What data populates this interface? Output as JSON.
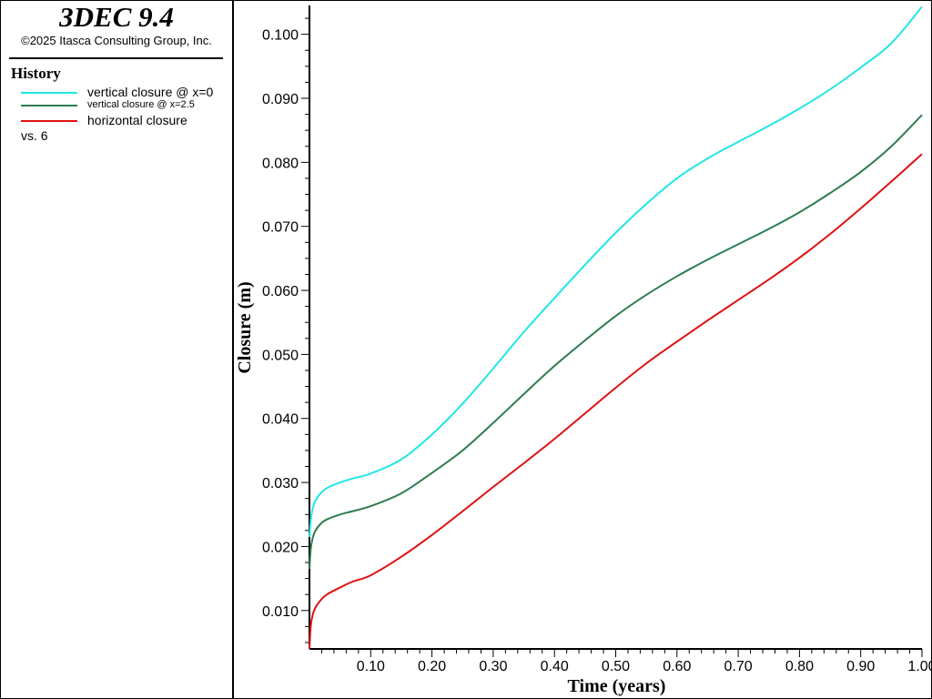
{
  "app": {
    "title": "3DEC 9.4",
    "copyright": "©2025 Itasca Consulting Group, Inc."
  },
  "legend": {
    "heading": "History",
    "vs": "vs. 6",
    "items": [
      {
        "label": "vertical closure @ x=0",
        "color": "#22E6E6"
      },
      {
        "label": "vertical closure @ x=2.5",
        "color": "#2E7D4F"
      },
      {
        "label": "horizontal closure",
        "color": "#E01010"
      }
    ]
  },
  "chart_data": {
    "type": "line",
    "xlabel": "Time (years)",
    "ylabel": "Closure (m)",
    "xlim": [
      0,
      1.0
    ],
    "ylim": [
      0.004,
      0.1045
    ],
    "x_ticks": [
      "0.10",
      "0.20",
      "0.30",
      "0.40",
      "0.50",
      "0.60",
      "0.70",
      "0.80",
      "0.90",
      "1.00"
    ],
    "y_ticks": [
      "0.010",
      "0.020",
      "0.030",
      "0.040",
      "0.050",
      "0.060",
      "0.070",
      "0.080",
      "0.090",
      "0.100"
    ],
    "grid": false,
    "legend_position": "left-panel",
    "series": [
      {
        "name": "vertical closure @ x=0",
        "color": "#22E6E6",
        "points": [
          [
            0,
            0.0215
          ],
          [
            0.002,
            0.024
          ],
          [
            0.005,
            0.0258
          ],
          [
            0.01,
            0.0272
          ],
          [
            0.02,
            0.0285
          ],
          [
            0.03,
            0.0292
          ],
          [
            0.05,
            0.03
          ],
          [
            0.07,
            0.0306
          ],
          [
            0.1,
            0.0314
          ],
          [
            0.15,
            0.0336
          ],
          [
            0.2,
            0.0375
          ],
          [
            0.25,
            0.0423
          ],
          [
            0.3,
            0.0478
          ],
          [
            0.35,
            0.0535
          ],
          [
            0.4,
            0.0588
          ],
          [
            0.45,
            0.064
          ],
          [
            0.5,
            0.069
          ],
          [
            0.55,
            0.0735
          ],
          [
            0.6,
            0.0775
          ],
          [
            0.65,
            0.0806
          ],
          [
            0.7,
            0.0832
          ],
          [
            0.75,
            0.0857
          ],
          [
            0.8,
            0.0884
          ],
          [
            0.85,
            0.0914
          ],
          [
            0.9,
            0.0948
          ],
          [
            0.95,
            0.0986
          ],
          [
            1.0,
            0.1043
          ]
        ]
      },
      {
        "name": "vertical closure @ x=2.5",
        "color": "#2E7D4F",
        "points": [
          [
            0,
            0.0165
          ],
          [
            0.002,
            0.0195
          ],
          [
            0.005,
            0.0212
          ],
          [
            0.01,
            0.0225
          ],
          [
            0.02,
            0.0237
          ],
          [
            0.03,
            0.0243
          ],
          [
            0.05,
            0.025
          ],
          [
            0.07,
            0.0255
          ],
          [
            0.1,
            0.0263
          ],
          [
            0.15,
            0.0283
          ],
          [
            0.2,
            0.0315
          ],
          [
            0.25,
            0.035
          ],
          [
            0.3,
            0.0393
          ],
          [
            0.35,
            0.0438
          ],
          [
            0.4,
            0.0482
          ],
          [
            0.45,
            0.0522
          ],
          [
            0.5,
            0.056
          ],
          [
            0.55,
            0.0593
          ],
          [
            0.6,
            0.0622
          ],
          [
            0.65,
            0.0648
          ],
          [
            0.7,
            0.0672
          ],
          [
            0.75,
            0.0696
          ],
          [
            0.8,
            0.0722
          ],
          [
            0.85,
            0.0752
          ],
          [
            0.9,
            0.0785
          ],
          [
            0.95,
            0.0825
          ],
          [
            1.0,
            0.0874
          ]
        ]
      },
      {
        "name": "horizontal closure",
        "color": "#E01010",
        "points": [
          [
            0,
            0.004
          ],
          [
            0.002,
            0.0075
          ],
          [
            0.005,
            0.0092
          ],
          [
            0.01,
            0.0105
          ],
          [
            0.02,
            0.0118
          ],
          [
            0.03,
            0.0126
          ],
          [
            0.05,
            0.0136
          ],
          [
            0.07,
            0.0145
          ],
          [
            0.1,
            0.0155
          ],
          [
            0.15,
            0.0184
          ],
          [
            0.2,
            0.0218
          ],
          [
            0.25,
            0.0255
          ],
          [
            0.3,
            0.0293
          ],
          [
            0.35,
            0.033
          ],
          [
            0.4,
            0.0368
          ],
          [
            0.45,
            0.0408
          ],
          [
            0.5,
            0.0448
          ],
          [
            0.55,
            0.0486
          ],
          [
            0.6,
            0.052
          ],
          [
            0.65,
            0.0553
          ],
          [
            0.7,
            0.0585
          ],
          [
            0.75,
            0.0617
          ],
          [
            0.8,
            0.0651
          ],
          [
            0.85,
            0.0688
          ],
          [
            0.9,
            0.0728
          ],
          [
            0.95,
            0.077
          ],
          [
            1.0,
            0.0813
          ]
        ]
      }
    ]
  }
}
